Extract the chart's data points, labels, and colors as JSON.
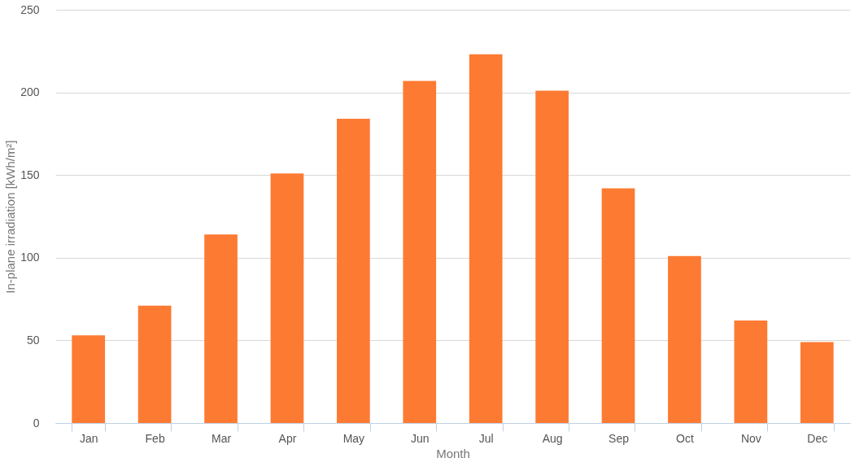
{
  "chart_data": {
    "type": "bar",
    "xlabel": "Month",
    "ylabel": "In-plane irradiation [kWh/m²]",
    "categories": [
      "Jan",
      "Feb",
      "Mar",
      "Apr",
      "May",
      "Jun",
      "Jul",
      "Aug",
      "Sep",
      "Oct",
      "Nov",
      "Dec"
    ],
    "values": [
      53,
      71,
      114,
      151,
      184,
      207,
      223,
      201,
      142,
      101,
      62,
      49
    ],
    "color": "#fd7a33",
    "ylim": [
      0,
      250
    ],
    "yticks": [
      0,
      50,
      100,
      150,
      200,
      250
    ],
    "grid": "y"
  }
}
